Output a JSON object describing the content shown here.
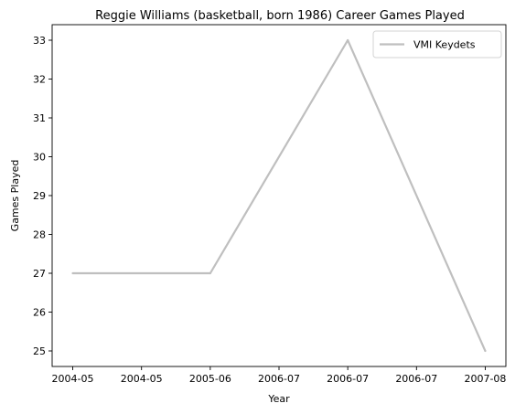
{
  "chart_data": {
    "type": "line",
    "title": "Reggie Williams (basketball, born 1986) Career Games Played",
    "xlabel": "Year",
    "ylabel": "Games Played",
    "x_tick_labels": [
      "2004-05",
      "2004-05",
      "2005-06",
      "2006-07",
      "2006-07",
      "2006-07",
      "2007-08"
    ],
    "x_tick_positions": [
      0,
      0.5,
      1,
      1.5,
      2,
      2.5,
      3
    ],
    "xlim": [
      -0.15,
      3.15
    ],
    "ylim": [
      24.6,
      33.4
    ],
    "y_ticks": [
      25,
      26,
      27,
      28,
      29,
      30,
      31,
      32,
      33
    ],
    "series": [
      {
        "name": "VMI Keydets",
        "color": "#bfbfbf",
        "x": [
          "2004-05",
          "2005-06",
          "2006-07",
          "2007-08"
        ],
        "values": [
          27,
          27,
          33,
          25
        ]
      }
    ],
    "grid": false,
    "legend_position": "top-right"
  }
}
